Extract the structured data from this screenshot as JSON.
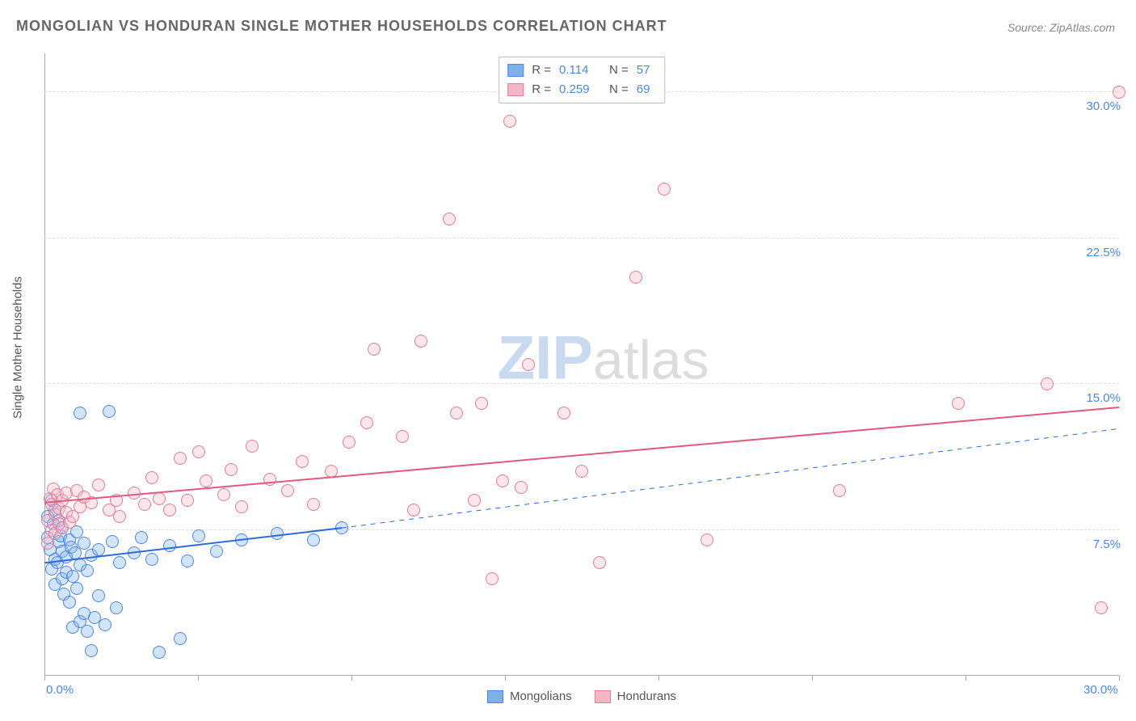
{
  "title": "MONGOLIAN VS HONDURAN SINGLE MOTHER HOUSEHOLDS CORRELATION CHART",
  "source_label": "Source:",
  "source_name": "ZipAtlas.com",
  "y_axis_label": "Single Mother Households",
  "watermark_a": "ZIP",
  "watermark_b": "atlas",
  "chart": {
    "type": "scatter",
    "xlim": [
      0,
      30
    ],
    "ylim": [
      0,
      32
    ],
    "x_ticks": [
      0,
      4.29,
      8.57,
      12.86,
      17.14,
      21.43,
      25.71,
      30
    ],
    "x_tick_labels": {
      "0": "0.0%",
      "30": "30.0%"
    },
    "y_gridlines": [
      7.5,
      15.0,
      22.5,
      30.0
    ],
    "y_tick_labels": {
      "7.5": "7.5%",
      "15.0": "15.0%",
      "22.5": "22.5%",
      "30.0": "30.0%"
    },
    "background_color": "#ffffff",
    "grid_color": "#dddddd",
    "axis_color": "#aaaaaa",
    "axis_num_color": "#4a86e8",
    "marker_radius": 8,
    "marker_border_width": 1.5,
    "marker_fill_opacity": 0.35,
    "series": [
      {
        "name": "Mongolians",
        "color_fill": "#7eb1ea",
        "color_stroke": "#4a86e8",
        "R": "0.114",
        "N": "57",
        "trend": {
          "x1": 0,
          "y1": 5.8,
          "x2": 8.3,
          "y2": 7.6,
          "dashed_to_x": 30,
          "dashed_to_y": 12.7,
          "color": "#2d6cd6",
          "width": 2
        },
        "points": [
          [
            0.1,
            8.2
          ],
          [
            0.1,
            7.1
          ],
          [
            0.15,
            6.5
          ],
          [
            0.2,
            5.5
          ],
          [
            0.2,
            9.0
          ],
          [
            0.25,
            7.8
          ],
          [
            0.3,
            6.0
          ],
          [
            0.3,
            8.5
          ],
          [
            0.3,
            4.7
          ],
          [
            0.35,
            5.8
          ],
          [
            0.4,
            6.9
          ],
          [
            0.4,
            8.0
          ],
          [
            0.45,
            7.2
          ],
          [
            0.5,
            5.0
          ],
          [
            0.5,
            6.4
          ],
          [
            0.5,
            7.6
          ],
          [
            0.55,
            4.2
          ],
          [
            0.6,
            6.1
          ],
          [
            0.6,
            5.3
          ],
          [
            0.7,
            7.0
          ],
          [
            0.7,
            3.8
          ],
          [
            0.75,
            6.6
          ],
          [
            0.8,
            2.5
          ],
          [
            0.8,
            5.1
          ],
          [
            0.85,
            6.3
          ],
          [
            0.9,
            4.5
          ],
          [
            0.9,
            7.4
          ],
          [
            1.0,
            2.8
          ],
          [
            1.0,
            5.7
          ],
          [
            1.0,
            13.5
          ],
          [
            1.1,
            6.8
          ],
          [
            1.1,
            3.2
          ],
          [
            1.2,
            2.3
          ],
          [
            1.2,
            5.4
          ],
          [
            1.3,
            6.2
          ],
          [
            1.3,
            1.3
          ],
          [
            1.4,
            3.0
          ],
          [
            1.5,
            6.5
          ],
          [
            1.5,
            4.1
          ],
          [
            1.7,
            2.6
          ],
          [
            1.8,
            13.6
          ],
          [
            1.9,
            6.9
          ],
          [
            2.0,
            3.5
          ],
          [
            2.1,
            5.8
          ],
          [
            2.5,
            6.3
          ],
          [
            2.7,
            7.1
          ],
          [
            3.0,
            6.0
          ],
          [
            3.2,
            1.2
          ],
          [
            3.5,
            6.7
          ],
          [
            3.8,
            1.9
          ],
          [
            4.0,
            5.9
          ],
          [
            4.3,
            7.2
          ],
          [
            4.8,
            6.4
          ],
          [
            5.5,
            7.0
          ],
          [
            6.5,
            7.3
          ],
          [
            7.5,
            7.0
          ],
          [
            8.3,
            7.6
          ]
        ]
      },
      {
        "name": "Hondurans",
        "color_fill": "#f4b6c4",
        "color_stroke": "#e47a96",
        "R": "0.259",
        "N": "69",
        "trend": {
          "x1": 0,
          "y1": 8.9,
          "x2": 30,
          "y2": 13.8,
          "color": "#e15a7e",
          "width": 2
        },
        "points": [
          [
            0.1,
            6.8
          ],
          [
            0.1,
            8.0
          ],
          [
            0.15,
            9.1
          ],
          [
            0.2,
            7.5
          ],
          [
            0.2,
            8.8
          ],
          [
            0.25,
            9.6
          ],
          [
            0.3,
            7.3
          ],
          [
            0.3,
            8.3
          ],
          [
            0.35,
            9.3
          ],
          [
            0.4,
            7.8
          ],
          [
            0.4,
            8.6
          ],
          [
            0.5,
            9.0
          ],
          [
            0.5,
            7.6
          ],
          [
            0.6,
            8.4
          ],
          [
            0.6,
            9.4
          ],
          [
            0.7,
            7.9
          ],
          [
            0.8,
            8.2
          ],
          [
            0.9,
            9.5
          ],
          [
            1.0,
            8.7
          ],
          [
            1.1,
            9.2
          ],
          [
            1.3,
            8.9
          ],
          [
            1.5,
            9.8
          ],
          [
            1.8,
            8.5
          ],
          [
            2.0,
            9.0
          ],
          [
            2.1,
            8.2
          ],
          [
            2.5,
            9.4
          ],
          [
            2.8,
            8.8
          ],
          [
            3.0,
            10.2
          ],
          [
            3.2,
            9.1
          ],
          [
            3.5,
            8.5
          ],
          [
            3.8,
            11.2
          ],
          [
            4.0,
            9.0
          ],
          [
            4.3,
            11.5
          ],
          [
            4.5,
            10.0
          ],
          [
            5.0,
            9.3
          ],
          [
            5.2,
            10.6
          ],
          [
            5.5,
            8.7
          ],
          [
            5.8,
            11.8
          ],
          [
            6.3,
            10.1
          ],
          [
            6.8,
            9.5
          ],
          [
            7.2,
            11.0
          ],
          [
            7.5,
            8.8
          ],
          [
            8.0,
            10.5
          ],
          [
            8.5,
            12.0
          ],
          [
            9.0,
            13.0
          ],
          [
            9.2,
            16.8
          ],
          [
            10.0,
            12.3
          ],
          [
            10.3,
            8.5
          ],
          [
            10.5,
            17.2
          ],
          [
            11.3,
            23.5
          ],
          [
            11.5,
            13.5
          ],
          [
            12.0,
            9.0
          ],
          [
            12.2,
            14.0
          ],
          [
            12.5,
            5.0
          ],
          [
            12.8,
            10.0
          ],
          [
            13.0,
            28.5
          ],
          [
            13.3,
            9.7
          ],
          [
            13.5,
            16.0
          ],
          [
            14.5,
            13.5
          ],
          [
            15.0,
            10.5
          ],
          [
            15.5,
            5.8
          ],
          [
            16.5,
            20.5
          ],
          [
            17.3,
            25.0
          ],
          [
            18.5,
            7.0
          ],
          [
            22.2,
            9.5
          ],
          [
            25.5,
            14.0
          ],
          [
            28.0,
            15.0
          ],
          [
            29.5,
            3.5
          ],
          [
            30.0,
            30.0
          ]
        ]
      }
    ],
    "legend_top": {
      "R_label": "R  =",
      "N_label": "N  ="
    },
    "legend_bottom_labels": [
      "Mongolians",
      "Hondurans"
    ],
    "title_fontsize": 18,
    "label_fontsize": 15
  }
}
